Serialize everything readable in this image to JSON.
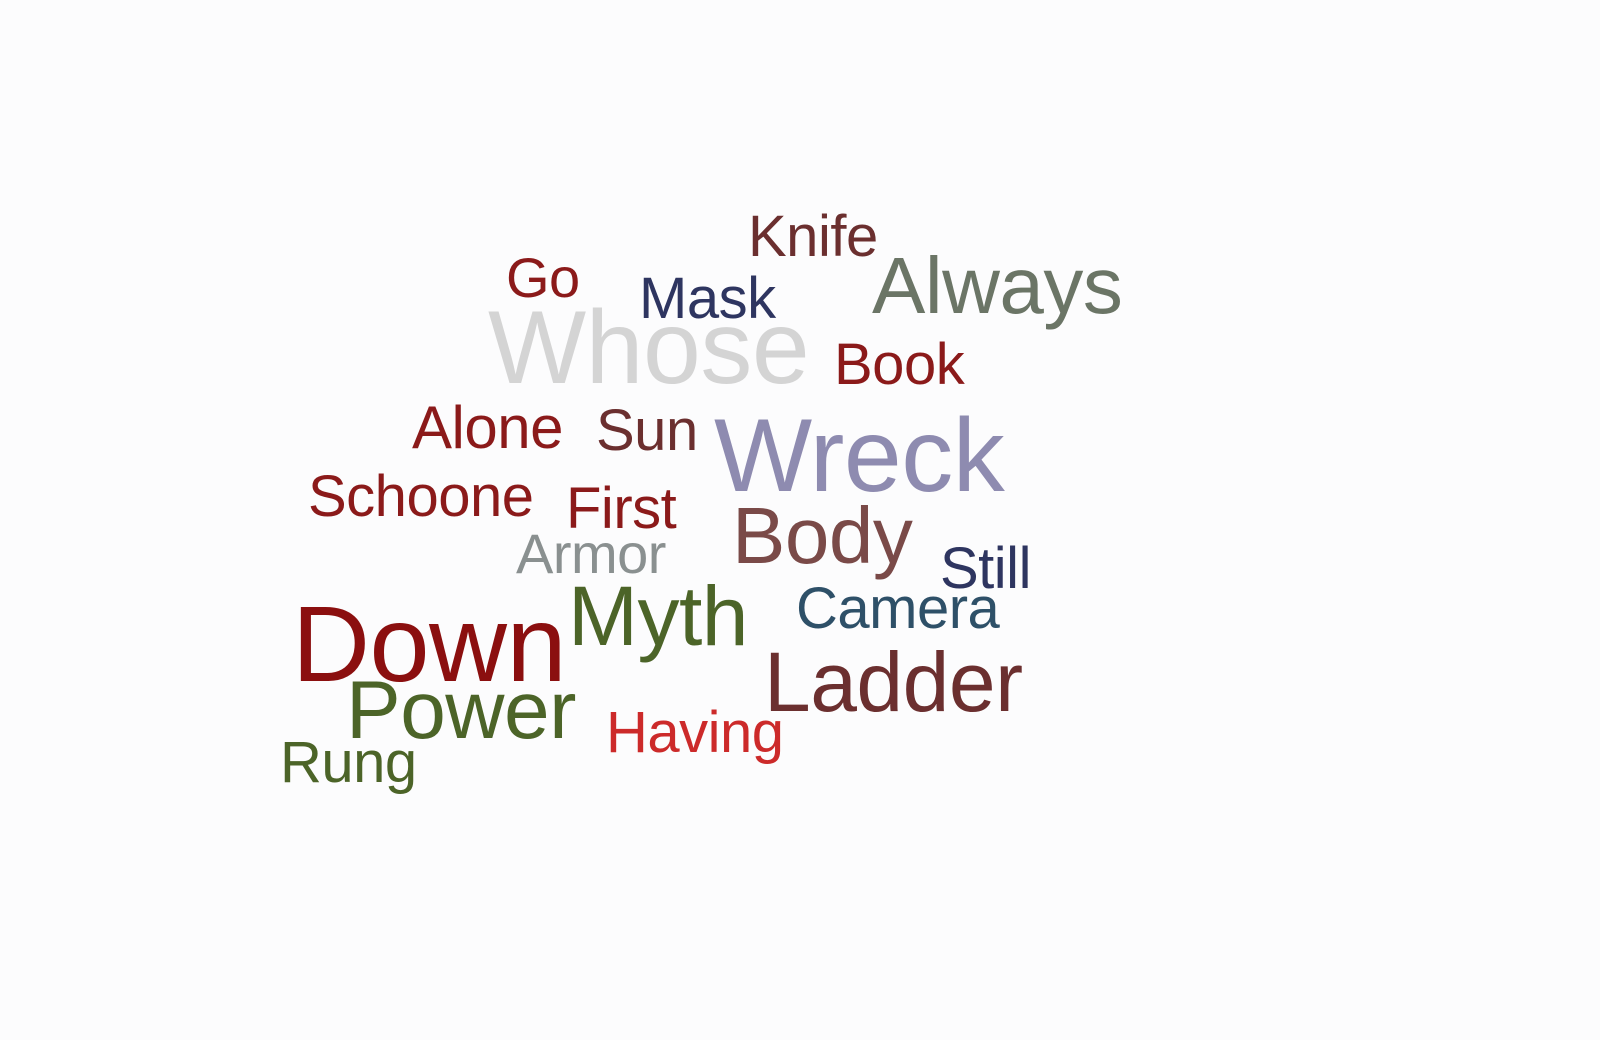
{
  "words": {
    "knife": {
      "text": "Knife",
      "color": "#6b2f2f"
    },
    "always": {
      "text": "Always",
      "color": "#6b7566"
    },
    "go": {
      "text": "Go",
      "color": "#8b1a1a"
    },
    "mask": {
      "text": "Mask",
      "color": "#2e3560"
    },
    "whose": {
      "text": "Whose",
      "color": "#d4d4d4"
    },
    "book": {
      "text": "Book",
      "color": "#8b1a1a"
    },
    "alone": {
      "text": "Alone",
      "color": "#8b1a1a"
    },
    "sun": {
      "text": "Sun",
      "color": "#6b2f2f"
    },
    "wreck": {
      "text": "Wreck",
      "color": "#8e8bb0"
    },
    "schoone": {
      "text": "Schoone",
      "color": "#8b1a1a"
    },
    "first": {
      "text": "First",
      "color": "#8b1a1a"
    },
    "body": {
      "text": "Body",
      "color": "#7a4a48"
    },
    "armor": {
      "text": "Armor",
      "color": "#8a9090"
    },
    "still": {
      "text": "Still",
      "color": "#2e3560"
    },
    "down": {
      "text": "Down",
      "color": "#8b0f0f"
    },
    "myth": {
      "text": "Myth",
      "color": "#4c6428"
    },
    "camera": {
      "text": "Camera",
      "color": "#2e5068"
    },
    "ladder": {
      "text": "Ladder",
      "color": "#6b2f2f"
    },
    "power": {
      "text": "Power",
      "color": "#4c6428"
    },
    "having": {
      "text": "Having",
      "color": "#cc2a2a"
    },
    "rung": {
      "text": "Rung",
      "color": "#4c6428"
    }
  }
}
